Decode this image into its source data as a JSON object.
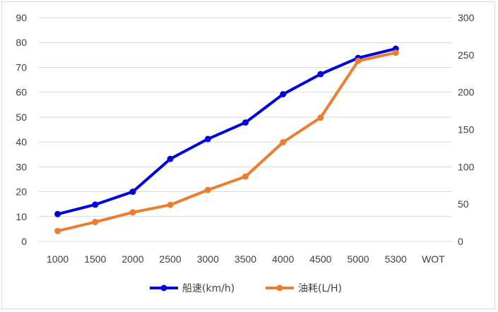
{
  "chart_data": {
    "type": "line",
    "categories": [
      "1000",
      "1500",
      "2000",
      "2500",
      "3000",
      "3500",
      "4000",
      "4500",
      "5000",
      "5300",
      "WOT"
    ],
    "series": [
      {
        "name": "船速(km/h)",
        "axis": "left",
        "color": "#0000e0",
        "values": [
          11,
          14.8,
          20,
          33.2,
          41.2,
          47.8,
          59.2,
          67.3,
          73.8,
          77.5,
          null
        ]
      },
      {
        "name": "油耗(L/H)",
        "axis": "right",
        "color": "#ed7d31",
        "values": [
          14,
          26,
          39,
          49,
          69,
          87,
          133,
          166,
          242,
          253,
          null
        ]
      }
    ],
    "y_left": {
      "min": 0,
      "max": 90,
      "ticks": [
        "0",
        "10",
        "20",
        "30",
        "40",
        "50",
        "60",
        "70",
        "80",
        "90"
      ]
    },
    "y_right": {
      "min": 0,
      "max": 300,
      "ticks": [
        "0",
        "50",
        "100",
        "150",
        "200",
        "250",
        "300"
      ]
    },
    "grid": "horizontal",
    "legend": "bottom-center"
  }
}
